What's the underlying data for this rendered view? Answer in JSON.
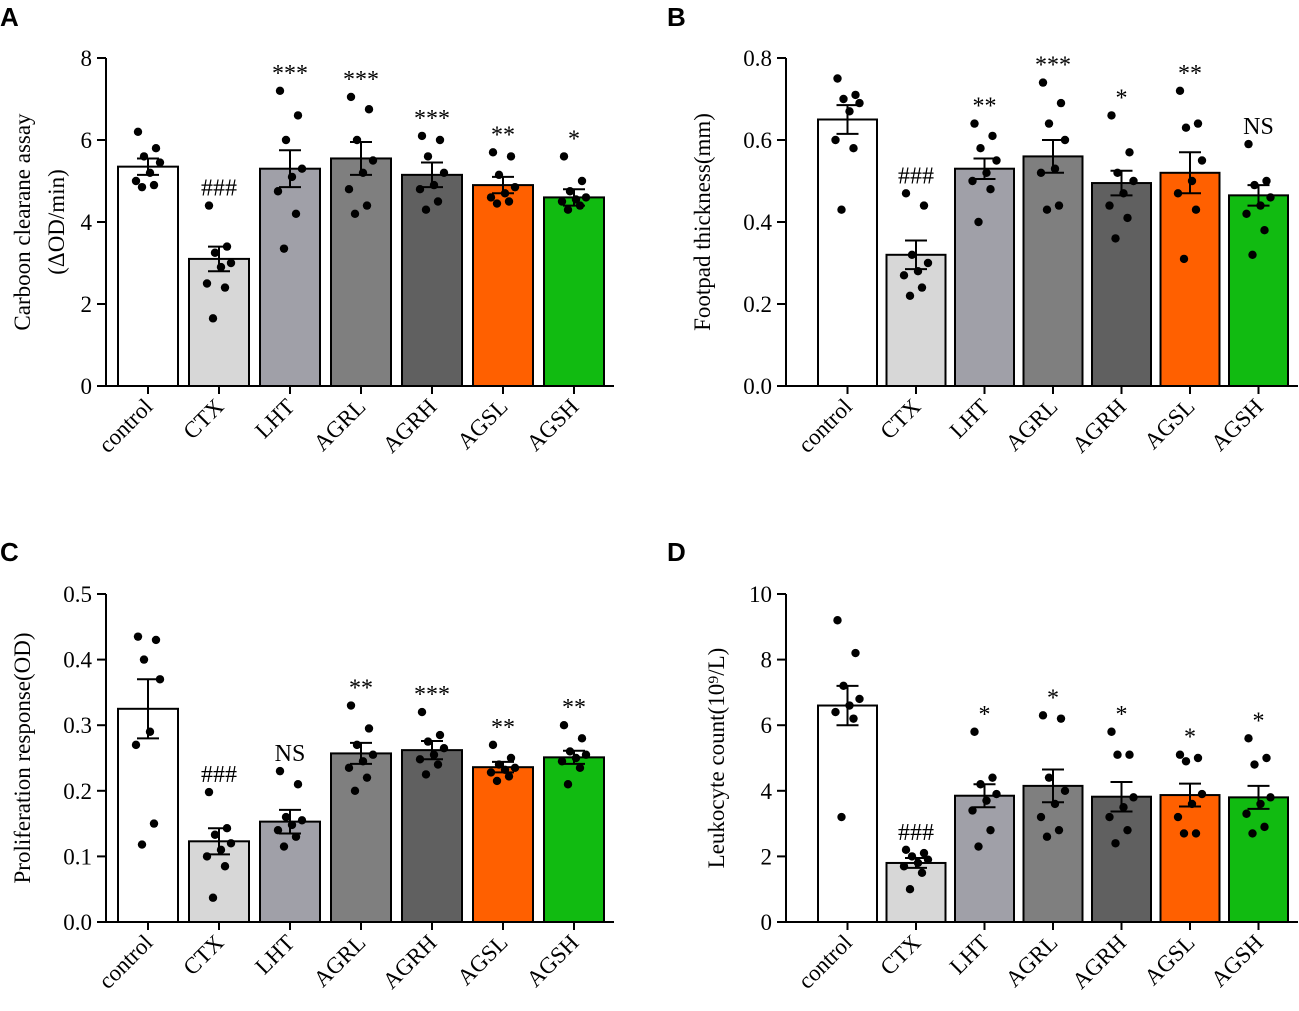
{
  "colors": {
    "control": "#ffffff",
    "CTX": "#d7d7d7",
    "LHT": "#a0a0a8",
    "AGRL": "#7f7f7f",
    "AGRH": "#606060",
    "AGSL": "#ff6000",
    "AGSH": "#11bb11"
  },
  "chart_data": [
    {
      "panel": "A",
      "type": "bar",
      "ylabel": [
        "Carboon clearane assay",
        "(ΔOD/min)"
      ],
      "ylim": [
        0,
        8
      ],
      "yticks": [
        0,
        2,
        4,
        6,
        8
      ],
      "ytick_labels": [
        "0",
        "2",
        "4",
        "6",
        "8"
      ],
      "categories": [
        "control",
        "CTX",
        "LHT",
        "AGRL",
        "AGRH",
        "AGSL",
        "AGSH"
      ],
      "values": [
        5.35,
        3.1,
        5.3,
        5.55,
        5.15,
        4.9,
        4.6
      ],
      "errors": [
        0.2,
        0.3,
        0.45,
        0.4,
        0.3,
        0.2,
        0.2
      ],
      "points": [
        [
          6.2,
          5.8,
          5.6,
          5.45,
          5.2,
          5.0,
          4.9,
          4.85
        ],
        [
          4.4,
          3.4,
          3.25,
          3.0,
          2.9,
          2.5,
          2.4,
          1.65
        ],
        [
          7.2,
          6.6,
          6.0,
          5.3,
          5.1,
          4.75,
          4.2,
          3.35
        ],
        [
          7.05,
          6.75,
          6.0,
          5.5,
          5.2,
          4.8,
          4.4,
          4.2
        ],
        [
          6.1,
          6.0,
          5.6,
          5.2,
          4.9,
          4.8,
          4.5,
          4.3
        ],
        [
          5.7,
          5.6,
          5.15,
          4.85,
          4.7,
          4.6,
          4.5,
          4.45
        ],
        [
          5.6,
          5.0,
          4.75,
          4.6,
          4.55,
          4.5,
          4.4,
          4.3
        ]
      ],
      "annotations": [
        "",
        "###",
        "***",
        "***",
        "***",
        "**",
        "*"
      ]
    },
    {
      "panel": "B",
      "type": "bar",
      "ylabel": [
        "Footpad thickness(mm)"
      ],
      "ylim": [
        0,
        0.8
      ],
      "yticks": [
        0,
        0.2,
        0.4,
        0.6,
        0.8
      ],
      "ytick_labels": [
        "0.0",
        "0.2",
        "0.4",
        "0.6",
        "0.8"
      ],
      "categories": [
        "control",
        "CTX",
        "LHT",
        "AGRL",
        "AGRH",
        "AGSL",
        "AGSH"
      ],
      "values": [
        0.65,
        0.32,
        0.53,
        0.56,
        0.495,
        0.52,
        0.465
      ],
      "errors": [
        0.035,
        0.035,
        0.025,
        0.04,
        0.03,
        0.05,
        0.025
      ],
      "points": [
        [
          0.75,
          0.71,
          0.7,
          0.69,
          0.67,
          0.6,
          0.58,
          0.43
        ],
        [
          0.47,
          0.44,
          0.32,
          0.3,
          0.28,
          0.27,
          0.24,
          0.22
        ],
        [
          0.64,
          0.61,
          0.58,
          0.55,
          0.52,
          0.5,
          0.48,
          0.4
        ],
        [
          0.74,
          0.69,
          0.64,
          0.6,
          0.53,
          0.52,
          0.44,
          0.43
        ],
        [
          0.66,
          0.57,
          0.52,
          0.5,
          0.47,
          0.44,
          0.41,
          0.36
        ],
        [
          0.72,
          0.64,
          0.63,
          0.55,
          0.5,
          0.47,
          0.43,
          0.31
        ],
        [
          0.59,
          0.5,
          0.49,
          0.46,
          0.44,
          0.42,
          0.38,
          0.32
        ]
      ],
      "annotations": [
        "",
        "###",
        "**",
        "***",
        "*",
        "**",
        "NS"
      ]
    },
    {
      "panel": "C",
      "type": "bar",
      "ylabel": [
        "Proliferation response(OD)"
      ],
      "ylim": [
        0,
        0.5
      ],
      "yticks": [
        0,
        0.1,
        0.2,
        0.3,
        0.4,
        0.5
      ],
      "ytick_labels": [
        "0.0",
        "0.1",
        "0.2",
        "0.3",
        "0.4",
        "0.5"
      ],
      "categories": [
        "control",
        "CTX",
        "LHT",
        "AGRL",
        "AGRH",
        "AGSL",
        "AGSH"
      ],
      "values": [
        0.325,
        0.123,
        0.153,
        0.257,
        0.262,
        0.236,
        0.251
      ],
      "errors": [
        0.045,
        0.02,
        0.018,
        0.016,
        0.014,
        0.008,
        0.01
      ],
      "points": [
        [
          0.435,
          0.43,
          0.4,
          0.37,
          0.29,
          0.27,
          0.15,
          0.118
        ],
        [
          0.198,
          0.143,
          0.133,
          0.12,
          0.11,
          0.1,
          0.085,
          0.037
        ],
        [
          0.23,
          0.21,
          0.16,
          0.155,
          0.148,
          0.14,
          0.13,
          0.115
        ],
        [
          0.33,
          0.295,
          0.27,
          0.255,
          0.245,
          0.235,
          0.22,
          0.2
        ],
        [
          0.32,
          0.285,
          0.275,
          0.265,
          0.255,
          0.248,
          0.24,
          0.225
        ],
        [
          0.27,
          0.25,
          0.24,
          0.235,
          0.232,
          0.228,
          0.222,
          0.215
        ],
        [
          0.3,
          0.28,
          0.26,
          0.255,
          0.25,
          0.245,
          0.235,
          0.21
        ]
      ],
      "annotations": [
        "",
        "###",
        "NS",
        "**",
        "***",
        "**",
        "**"
      ]
    },
    {
      "panel": "D",
      "type": "bar",
      "ylabel": [
        "Leukocyte count(10⁹/L)"
      ],
      "ylim": [
        0,
        10
      ],
      "yticks": [
        0,
        2,
        4,
        6,
        8,
        10
      ],
      "ytick_labels": [
        "0",
        "2",
        "4",
        "6",
        "8",
        "10"
      ],
      "categories": [
        "control",
        "CTX",
        "LHT",
        "AGRL",
        "AGRH",
        "AGSL",
        "AGSH"
      ],
      "values": [
        6.6,
        1.8,
        3.85,
        4.15,
        3.82,
        3.87,
        3.8
      ],
      "errors": [
        0.6,
        0.15,
        0.35,
        0.5,
        0.45,
        0.35,
        0.35
      ],
      "points": [
        [
          9.2,
          8.2,
          7.2,
          6.8,
          6.6,
          6.4,
          6.2,
          3.2
        ],
        [
          2.2,
          2.1,
          2.0,
          1.9,
          1.8,
          1.7,
          1.5,
          1.0
        ],
        [
          5.8,
          4.4,
          4.2,
          3.9,
          3.7,
          3.4,
          2.8,
          2.3
        ],
        [
          6.3,
          6.2,
          4.4,
          4.0,
          3.6,
          3.2,
          2.8,
          2.6
        ],
        [
          5.8,
          5.1,
          5.1,
          3.8,
          3.5,
          3.2,
          2.8,
          2.4
        ],
        [
          5.1,
          5.0,
          4.9,
          3.9,
          3.6,
          3.2,
          2.7,
          2.7
        ],
        [
          5.6,
          5.0,
          4.8,
          3.8,
          3.6,
          3.3,
          2.9,
          2.7
        ]
      ],
      "annotations": [
        "",
        "###",
        "*",
        "*",
        "*",
        "*",
        "*"
      ]
    }
  ]
}
